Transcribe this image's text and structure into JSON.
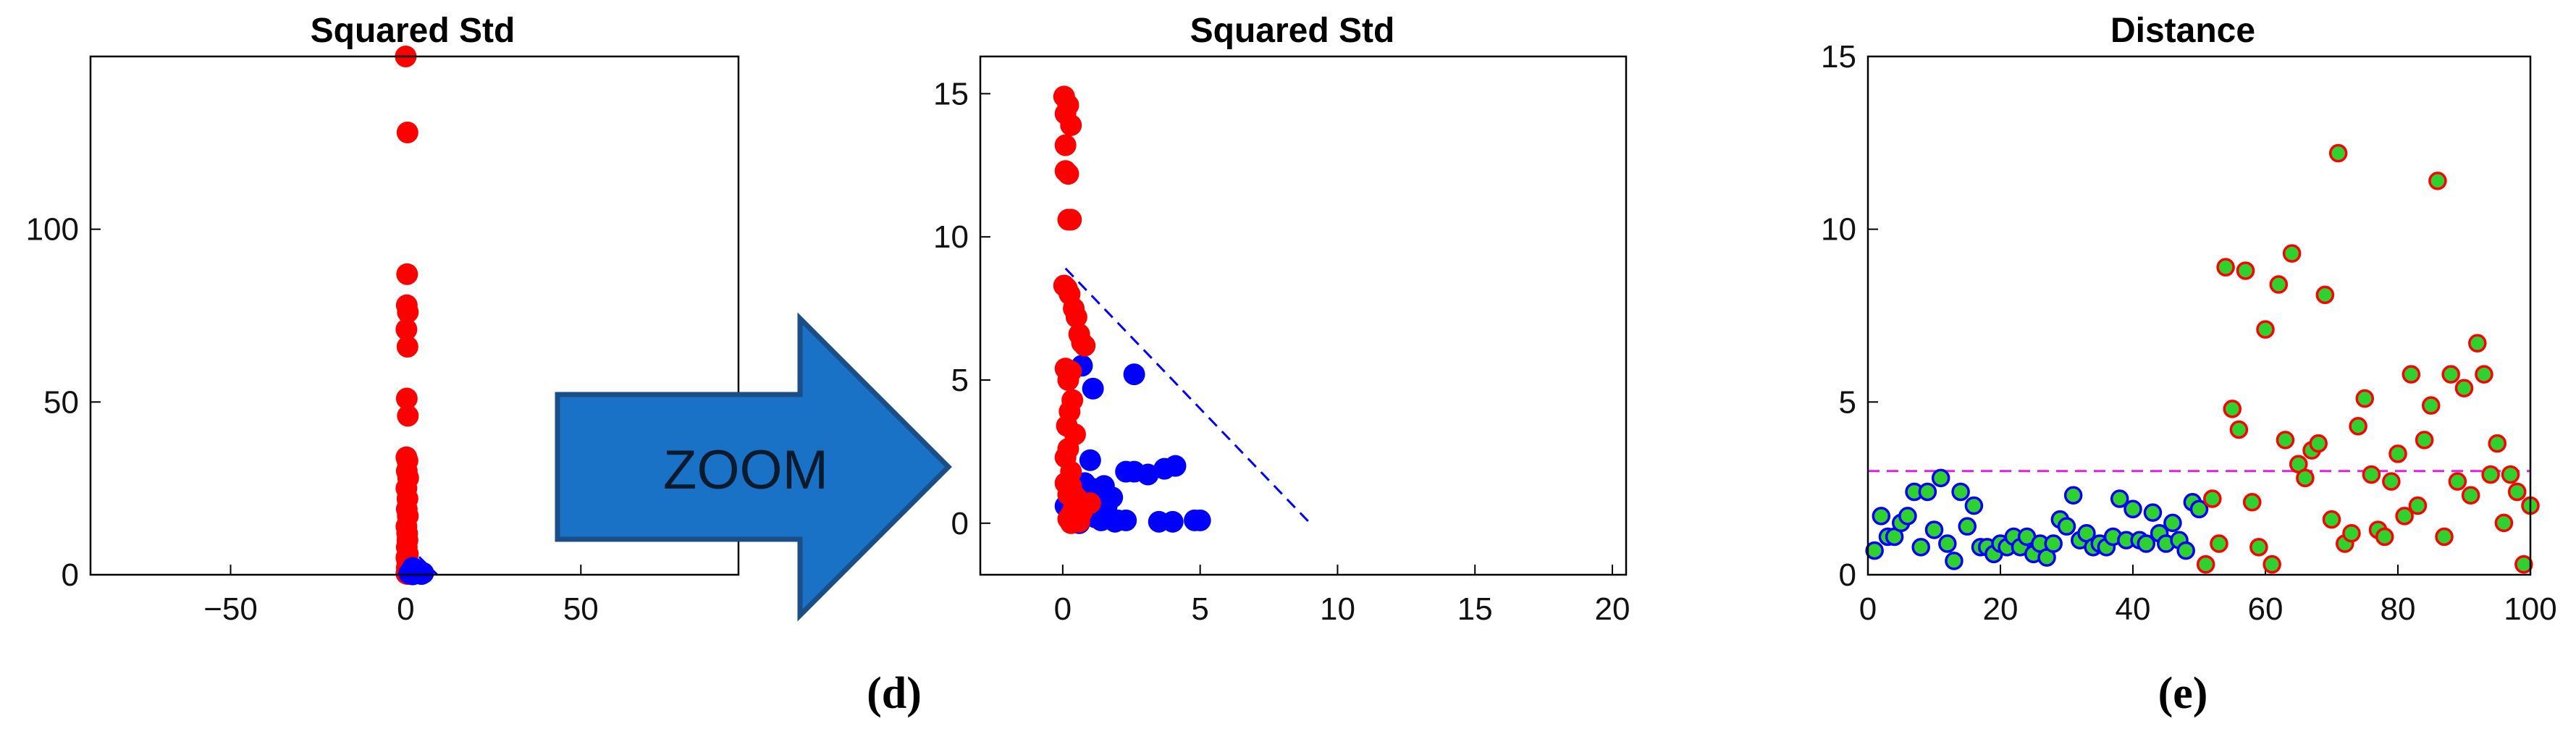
{
  "chart_data": [
    {
      "type": "scatter",
      "title": "Squared Std",
      "xlim": [
        -90,
        95
      ],
      "ylim": [
        0,
        150
      ],
      "xticks": [
        -50,
        0,
        50
      ],
      "yticks": [
        0,
        50,
        100
      ],
      "grid": false,
      "series": [
        {
          "color": "#ff0000",
          "marker": "filled-circle",
          "points": [
            [
              0,
              150
            ],
            [
              0.5,
              128
            ],
            [
              0.4,
              87
            ],
            [
              0.3,
              78
            ],
            [
              0.6,
              76
            ],
            [
              0.2,
              71
            ],
            [
              0.5,
              66
            ],
            [
              0.3,
              51
            ],
            [
              0.6,
              46
            ],
            [
              0.2,
              34
            ],
            [
              0.5,
              33
            ],
            [
              0.3,
              30
            ],
            [
              0.7,
              28
            ],
            [
              0.2,
              25
            ],
            [
              0.5,
              22
            ],
            [
              0.3,
              19
            ],
            [
              0.6,
              17
            ],
            [
              0.2,
              14
            ],
            [
              0.4,
              12
            ],
            [
              0.5,
              10
            ],
            [
              0.3,
              8
            ],
            [
              0.6,
              6
            ],
            [
              0.2,
              5
            ],
            [
              0.4,
              4
            ],
            [
              0.5,
              3
            ],
            [
              0.3,
              2
            ],
            [
              0.6,
              1.5
            ],
            [
              0.8,
              1
            ],
            [
              1.2,
              0.5
            ],
            [
              0.2,
              0.3
            ],
            [
              0.6,
              0.2
            ]
          ]
        },
        {
          "color": "#0000ff",
          "marker": "filled-circle",
          "points": [
            [
              2,
              2
            ],
            [
              3,
              1.5
            ],
            [
              4,
              1
            ],
            [
              5,
              0.5
            ],
            [
              2.5,
              0.3
            ],
            [
              1.5,
              1
            ],
            [
              3.5,
              0.8
            ],
            [
              4.5,
              0.2
            ],
            [
              1,
              0.4
            ],
            [
              2,
              0.1
            ]
          ]
        }
      ],
      "lines": [
        {
          "color": "#0000ff",
          "style": "dashed",
          "points": [
            [
              0,
              9
            ],
            [
              9,
              0
            ]
          ]
        }
      ]
    },
    {
      "type": "scatter",
      "title": "Squared Std",
      "xlim": [
        -3,
        20.5
      ],
      "ylim": [
        -1.8,
        16.3
      ],
      "xticks": [
        0,
        5,
        10,
        15,
        20
      ],
      "yticks": [
        0,
        5,
        10,
        15
      ],
      "grid": false,
      "series": [
        {
          "color": "#0000ff",
          "marker": "filled-circle",
          "points": [
            [
              0.1,
              0.6
            ],
            [
              0.3,
              0.7
            ],
            [
              0.6,
              0.9
            ],
            [
              1.1,
              1.2
            ],
            [
              1.5,
              1.3
            ],
            [
              2.3,
              1.8
            ],
            [
              2.6,
              1.8
            ],
            [
              3.1,
              1.7
            ],
            [
              3.7,
              1.9
            ],
            [
              4.1,
              2.0
            ],
            [
              0.7,
              5.5
            ],
            [
              1.1,
              4.7
            ],
            [
              2.6,
              5.2
            ],
            [
              1.0,
              2.2
            ],
            [
              1.4,
              1.0
            ],
            [
              1.8,
              0.9
            ],
            [
              2.0,
              0.1
            ],
            [
              2.3,
              0.1
            ],
            [
              1.2,
              0.2
            ],
            [
              1.4,
              0.1
            ],
            [
              1.9,
              0.05
            ],
            [
              3.5,
              0.05
            ],
            [
              4.0,
              0.05
            ],
            [
              4.8,
              0.1
            ],
            [
              5.0,
              0.1
            ],
            [
              0.9,
              0.3
            ],
            [
              0.5,
              0.4
            ],
            [
              0.8,
              1.4
            ],
            [
              0.3,
              0.3
            ],
            [
              0.6,
              0.0
            ],
            [
              1.6,
              0.6
            ]
          ]
        },
        {
          "color": "#ff0000",
          "marker": "filled-circle",
          "points": [
            [
              0.05,
              14.9
            ],
            [
              0.2,
              14.6
            ],
            [
              0.1,
              14.3
            ],
            [
              0.3,
              13.9
            ],
            [
              0.1,
              13.2
            ],
            [
              0.2,
              12.2
            ],
            [
              0.1,
              12.3
            ],
            [
              0.3,
              10.6
            ],
            [
              0.2,
              10.6
            ],
            [
              0.05,
              8.3
            ],
            [
              0.15,
              8.2
            ],
            [
              0.25,
              8.0
            ],
            [
              0.4,
              7.5
            ],
            [
              0.5,
              7.2
            ],
            [
              0.6,
              6.6
            ],
            [
              0.7,
              6.3
            ],
            [
              0.8,
              6.2
            ],
            [
              0.1,
              5.4
            ],
            [
              0.3,
              5.3
            ],
            [
              0.2,
              5.0
            ],
            [
              0.35,
              4.3
            ],
            [
              0.25,
              3.9
            ],
            [
              0.15,
              3.4
            ],
            [
              0.45,
              3.1
            ],
            [
              0.2,
              2.6
            ],
            [
              0.1,
              2.3
            ],
            [
              0.3,
              1.8
            ],
            [
              0.1,
              1.4
            ],
            [
              0.3,
              1.3
            ],
            [
              0.2,
              1.0
            ],
            [
              0.5,
              0.9
            ],
            [
              0.6,
              0.7
            ],
            [
              0.8,
              0.6
            ],
            [
              1.0,
              0.7
            ],
            [
              0.4,
              0.5
            ],
            [
              0.7,
              0.4
            ],
            [
              0.3,
              0.3
            ],
            [
              0.5,
              0.2
            ],
            [
              0.2,
              0.15
            ],
            [
              0.4,
              0.1
            ],
            [
              0.6,
              0.05
            ],
            [
              0.3,
              0.0
            ]
          ]
        }
      ],
      "lines": [
        {
          "color": "#0000ff",
          "style": "dashed",
          "points": [
            [
              0.1,
              8.9
            ],
            [
              9,
              0
            ]
          ]
        }
      ]
    },
    {
      "type": "scatter",
      "title": "Distance",
      "xlim": [
        0,
        100
      ],
      "ylim": [
        0,
        15
      ],
      "xticks": [
        0,
        20,
        40,
        60,
        80,
        100
      ],
      "yticks": [
        0,
        5,
        10,
        15
      ],
      "grid": false,
      "threshold": 3,
      "series": [
        {
          "color": "#0000ff",
          "fill": "#2fd12f",
          "marker": "ring",
          "points": [
            [
              1,
              0.7
            ],
            [
              2,
              1.7
            ],
            [
              3,
              1.1
            ],
            [
              4,
              1.1
            ],
            [
              5,
              1.5
            ],
            [
              6,
              1.7
            ],
            [
              7,
              2.4
            ],
            [
              8,
              0.8
            ],
            [
              9,
              2.4
            ],
            [
              10,
              1.3
            ],
            [
              11,
              2.8
            ],
            [
              12,
              0.9
            ],
            [
              13,
              0.4
            ],
            [
              14,
              2.4
            ],
            [
              15,
              1.4
            ],
            [
              16,
              2.0
            ],
            [
              17,
              0.8
            ],
            [
              18,
              0.8
            ],
            [
              19,
              0.6
            ],
            [
              20,
              0.9
            ],
            [
              21,
              0.8
            ],
            [
              22,
              1.1
            ],
            [
              23,
              0.8
            ],
            [
              24,
              1.1
            ],
            [
              25,
              0.6
            ],
            [
              26,
              0.9
            ],
            [
              27,
              0.5
            ],
            [
              28,
              0.9
            ],
            [
              29,
              1.6
            ],
            [
              30,
              1.4
            ],
            [
              31,
              2.3
            ],
            [
              32,
              1.0
            ],
            [
              33,
              1.2
            ],
            [
              34,
              0.8
            ],
            [
              35,
              0.9
            ],
            [
              36,
              0.8
            ],
            [
              37,
              1.1
            ],
            [
              38,
              2.2
            ],
            [
              39,
              1.0
            ],
            [
              40,
              1.9
            ],
            [
              41,
              1.0
            ],
            [
              42,
              0.9
            ],
            [
              43,
              1.8
            ],
            [
              44,
              1.2
            ],
            [
              45,
              0.9
            ],
            [
              46,
              1.5
            ],
            [
              47,
              1.0
            ],
            [
              48,
              0.7
            ],
            [
              49,
              2.1
            ],
            [
              50,
              1.9
            ]
          ]
        },
        {
          "color": "#ff0000",
          "fill": "#2fd12f",
          "marker": "ring",
          "points": [
            [
              51,
              0.3
            ],
            [
              52,
              2.2
            ],
            [
              53,
              0.9
            ],
            [
              54,
              8.9
            ],
            [
              55,
              4.8
            ],
            [
              56,
              4.2
            ],
            [
              57,
              8.8
            ],
            [
              58,
              2.1
            ],
            [
              59,
              0.8
            ],
            [
              60,
              7.1
            ],
            [
              61,
              0.3
            ],
            [
              62,
              8.4
            ],
            [
              63,
              3.9
            ],
            [
              64,
              9.3
            ],
            [
              65,
              3.2
            ],
            [
              66,
              2.8
            ],
            [
              67,
              3.6
            ],
            [
              68,
              3.8
            ],
            [
              69,
              8.1
            ],
            [
              70,
              1.6
            ],
            [
              71,
              12.2
            ],
            [
              72,
              0.9
            ],
            [
              73,
              1.2
            ],
            [
              74,
              4.3
            ],
            [
              75,
              5.1
            ],
            [
              76,
              2.9
            ],
            [
              77,
              1.3
            ],
            [
              78,
              1.1
            ],
            [
              79,
              2.7
            ],
            [
              80,
              3.5
            ],
            [
              81,
              1.7
            ],
            [
              82,
              5.8
            ],
            [
              83,
              2.0
            ],
            [
              84,
              3.9
            ],
            [
              85,
              4.9
            ],
            [
              86,
              11.4
            ],
            [
              87,
              1.1
            ],
            [
              88,
              5.8
            ],
            [
              89,
              2.7
            ],
            [
              90,
              5.4
            ],
            [
              91,
              2.3
            ],
            [
              92,
              6.7
            ],
            [
              93,
              5.8
            ],
            [
              94,
              2.9
            ],
            [
              95,
              3.8
            ],
            [
              96,
              1.5
            ],
            [
              97,
              2.9
            ],
            [
              98,
              2.4
            ],
            [
              99,
              0.3
            ],
            [
              100,
              2.0
            ]
          ]
        }
      ],
      "lines": [
        {
          "color": "#e020e0",
          "style": "dashed",
          "points": [
            [
              0,
              3
            ],
            [
              100,
              3
            ]
          ]
        }
      ]
    }
  ],
  "panel_labels": {
    "d": "(d)",
    "e": "(e)"
  },
  "arrow": {
    "label": "ZOOM",
    "fill": "#1a72c6",
    "stroke": "#1b4e86"
  }
}
